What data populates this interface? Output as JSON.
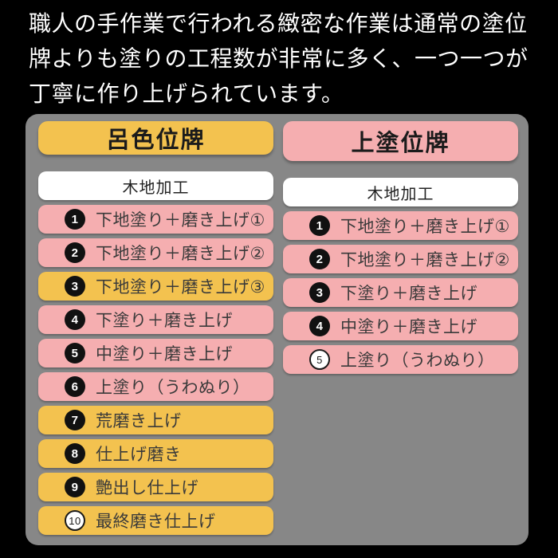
{
  "intro": {
    "lines": [
      "職人の手作業で行われる緻密な作業は通常の塗位",
      "牌よりも塗りの工程数が非常に多く、一つ一つが",
      "丁寧に作り上げられています。"
    ]
  },
  "palette": {
    "background": "#000000",
    "panel_gray": "#878787",
    "yellow": "#f3c24f",
    "pink": "#f5aeb0",
    "row_white": "#ffffff",
    "intro_text": "#ffffff",
    "step_text": "#3a3a3a",
    "badge_filled_bg": "#111111",
    "badge_filled_text": "#ffffff"
  },
  "columns": [
    {
      "title": "呂色位牌",
      "steps": [
        {
          "num": "",
          "label": "木地加工"
        },
        {
          "num": "1",
          "label": "下地塗り＋磨き上げ①"
        },
        {
          "num": "2",
          "label": "下地塗り＋磨き上げ②"
        },
        {
          "num": "3",
          "label": "下地塗り＋磨き上げ③"
        },
        {
          "num": "4",
          "label": "下塗り＋磨き上げ"
        },
        {
          "num": "5",
          "label": "中塗り＋磨き上げ"
        },
        {
          "num": "6",
          "label": "上塗り（うわぬり）"
        },
        {
          "num": "7",
          "label": "荒磨き上げ"
        },
        {
          "num": "8",
          "label": "仕上げ磨き"
        },
        {
          "num": "9",
          "label": "艶出し仕上げ"
        },
        {
          "num": "10",
          "label": "最終磨き仕上げ"
        }
      ]
    },
    {
      "title": "上塗位牌",
      "steps": [
        {
          "num": "",
          "label": "木地加工"
        },
        {
          "num": "1",
          "label": "下地塗り＋磨き上げ①"
        },
        {
          "num": "2",
          "label": "下地塗り＋磨き上げ②"
        },
        {
          "num": "3",
          "label": "下塗り＋磨き上げ"
        },
        {
          "num": "4",
          "label": "中塗り＋磨き上げ"
        },
        {
          "num": "5",
          "label": "上塗り（うわぬり）"
        }
      ]
    }
  ]
}
